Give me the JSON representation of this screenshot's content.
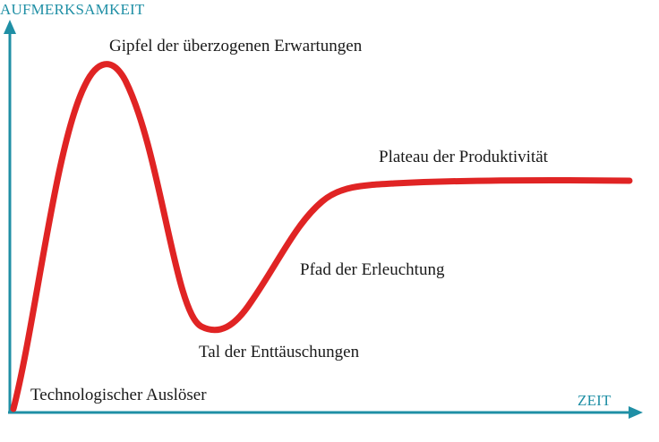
{
  "diagram": {
    "axes": {
      "y_label": "AUFMERKSAMKEIT",
      "x_label": "ZEIT",
      "color": "#1f8fa5"
    },
    "curve": {
      "color": "#e02424"
    },
    "phases": {
      "trigger": "Technologischer Auslöser",
      "peak": "Gipfel der überzogenen Erwartungen",
      "trough": "Tal der Enttäuschungen",
      "slope": "Pfad der Erleuchtung",
      "plateau": "Plateau der Produktivität"
    }
  }
}
